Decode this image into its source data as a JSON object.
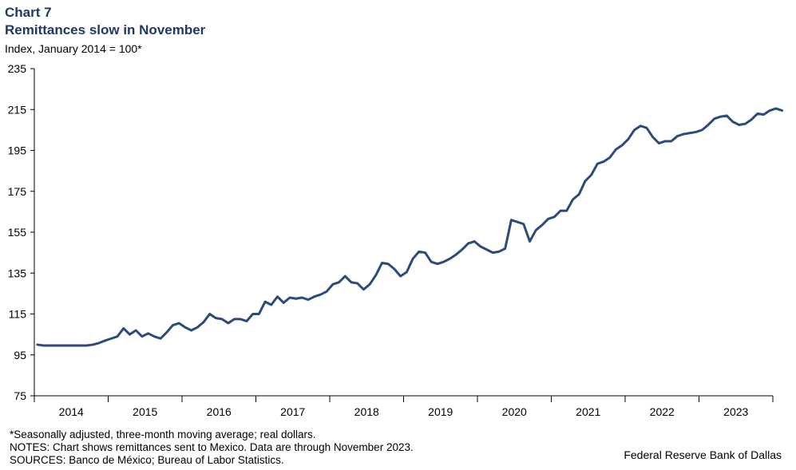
{
  "header": {
    "label": "Chart 7",
    "title": "Remittances slow in November",
    "unit": "Index, January 2014 = 100*"
  },
  "footer": {
    "note1": "*Seasonally adjusted, three-month moving average; real dollars.",
    "note2": "NOTES: Chart shows remittances sent to Mexico. Data are through November 2023.",
    "sources": "SOURCES: Banco de México; Bureau of Labor Statistics.",
    "credit": "Federal Reserve Bank of Dallas"
  },
  "chart_data": {
    "type": "line",
    "title": "Remittances slow in November",
    "ylabel": "Index, January 2014 = 100*",
    "xlabel": "",
    "ylim": [
      75,
      235
    ],
    "yticks": [
      75,
      95,
      115,
      135,
      155,
      175,
      195,
      215,
      235
    ],
    "xlim": [
      "2014-01",
      "2023-11"
    ],
    "xtick_labels": [
      "2014",
      "2015",
      "2016",
      "2017",
      "2018",
      "2019",
      "2020",
      "2021",
      "2022",
      "2023"
    ],
    "grid": false,
    "legend": "none",
    "line_color": "#2e4a7a",
    "series": [
      {
        "values": [
          100.0,
          99.6,
          99.6,
          99.6,
          99.6,
          99.6,
          99.6,
          99.6,
          99.6,
          100.0,
          100.8,
          102.0,
          103.0,
          104.0,
          108.0,
          105.0,
          107.0,
          104.0,
          105.5,
          104.0,
          103.0,
          106.0,
          109.5,
          110.5,
          108.5,
          107.0,
          108.5,
          111.0,
          115.0,
          113.0,
          112.5,
          110.5,
          112.5,
          112.5,
          111.5,
          115.0,
          115.0,
          121.0,
          119.5,
          123.5,
          120.5,
          123.0,
          122.5,
          123.0,
          122.0,
          123.5,
          124.5,
          126.0,
          129.5,
          130.5,
          133.5,
          130.5,
          130.0,
          127.0,
          129.5,
          134.0,
          140.0,
          139.5,
          137.0,
          133.5,
          135.5,
          142.0,
          145.5,
          145.0,
          140.5,
          139.5,
          140.5,
          142.0,
          144.0,
          146.5,
          149.5,
          150.5,
          148.0,
          146.5,
          145.0,
          145.5,
          147.0,
          161.0,
          160.0,
          159.0,
          150.5,
          156.0,
          158.5,
          161.5,
          162.5,
          165.5,
          165.5,
          171.0,
          173.5,
          180.0,
          183.0,
          188.5,
          189.5,
          191.5,
          195.5,
          197.5,
          200.5,
          205.0,
          207.0,
          206.0,
          201.5,
          198.5,
          199.5,
          199.5,
          202.0,
          203.0,
          203.5,
          204.0,
          205.0,
          207.5,
          210.5,
          211.5,
          212.0,
          209.0,
          207.5,
          208.0,
          210.0,
          213.0,
          212.5,
          214.5,
          215.5,
          214.5
        ]
      }
    ]
  }
}
